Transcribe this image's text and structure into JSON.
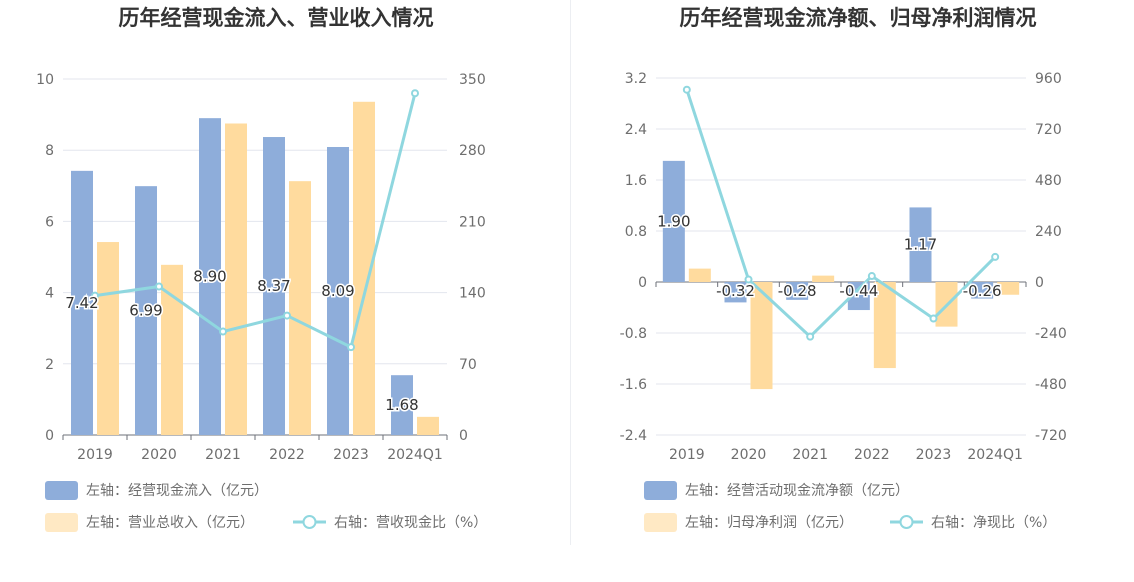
{
  "chart_data": [
    {
      "type": "bar",
      "title": "历年经营现金流入、营业收入情况",
      "categories": [
        "2019",
        "2020",
        "2021",
        "2022",
        "2023",
        "2024Q1"
      ],
      "y_left": {
        "ticks": [
          "0",
          "2",
          "4",
          "6",
          "8",
          "10"
        ],
        "range": [
          0,
          10
        ]
      },
      "y_right": {
        "ticks": [
          "0",
          "70",
          "140",
          "210",
          "280",
          "350"
        ],
        "range": [
          0,
          350
        ]
      },
      "series": [
        {
          "name": "左轴：经营现金流入（亿元）",
          "kind": "bar",
          "axis": "left",
          "color": "#8eadda",
          "values": [
            7.42,
            6.99,
            8.9,
            8.37,
            8.09,
            1.68
          ],
          "labels": [
            "7.42",
            "6.99",
            "8.90",
            "8.37",
            "8.09",
            "1.68"
          ]
        },
        {
          "name": "左轴：营业总收入（亿元）",
          "kind": "bar",
          "axis": "left",
          "color": "#ffdb9e",
          "values": [
            5.42,
            4.78,
            8.75,
            7.13,
            9.36,
            0.51
          ]
        },
        {
          "name": "右轴：营收现金比（%）",
          "kind": "line",
          "axis": "right",
          "color": "#8fd7df",
          "values": [
            137,
            146,
            101.7,
            117.4,
            86.4,
            336
          ]
        }
      ],
      "grid": true,
      "legend_position": "bottom-left"
    },
    {
      "type": "bar",
      "title": "历年经营现金流净额、归母净利润情况",
      "categories": [
        "2019",
        "2020",
        "2021",
        "2022",
        "2023",
        "2024Q1"
      ],
      "y_left": {
        "ticks": [
          "-2.4",
          "-1.6",
          "-0.8",
          "0",
          "0.8",
          "1.6",
          "2.4",
          "3.2"
        ],
        "range": [
          -2.4,
          3.2
        ]
      },
      "y_right": {
        "ticks": [
          "-720",
          "-480",
          "-240",
          "0",
          "240",
          "480",
          "720",
          "960"
        ],
        "range": [
          -720,
          960
        ]
      },
      "series": [
        {
          "name": "左轴：经营活动现金流净额（亿元）",
          "kind": "bar",
          "axis": "left",
          "color": "#8eadda",
          "values": [
            1.9,
            -0.32,
            -0.28,
            -0.44,
            1.17,
            -0.26
          ],
          "labels": [
            "1.90",
            "-0.32",
            "-0.28",
            "-0.44",
            "1.17",
            "-0.26"
          ]
        },
        {
          "name": "左轴：归母净利润（亿元）",
          "kind": "bar",
          "axis": "left",
          "color": "#ffdb9e",
          "values": [
            0.21,
            -1.68,
            0.1,
            -1.35,
            -0.7,
            -0.2
          ]
        },
        {
          "name": "右轴：净现比（%）",
          "kind": "line",
          "axis": "right",
          "color": "#8fd7df",
          "values": [
            905,
            12,
            -257,
            28,
            -172,
            118
          ]
        }
      ],
      "grid": true,
      "legend_position": "bottom-left"
    }
  ]
}
